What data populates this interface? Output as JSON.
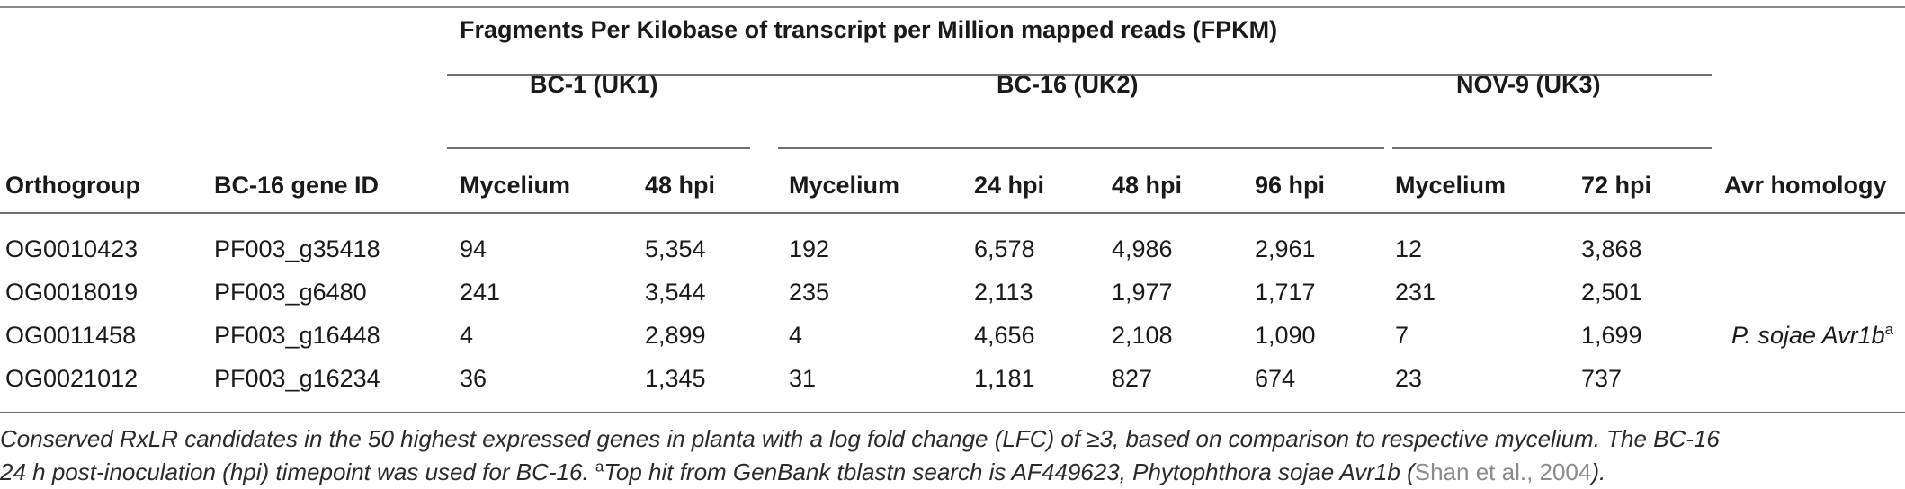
{
  "table": {
    "fpkm_header": "Fragments Per Kilobase of transcript per Million mapped reads (FPKM)",
    "groups": [
      "BC-1 (UK1)",
      "BC-16 (UK2)",
      "NOV-9 (UK3)"
    ],
    "columns": [
      "Orthogroup",
      "BC-16 gene ID",
      "Mycelium",
      "48 hpi",
      "Mycelium",
      "24 hpi",
      "48 hpi",
      "96 hpi",
      "Mycelium",
      "72 hpi",
      "Avr homology"
    ],
    "rows": [
      [
        "OG0010423",
        "PF003_g35418",
        "94",
        "5,354",
        "192",
        "6,578",
        "4,986",
        "2,961",
        "12",
        "3,868",
        ""
      ],
      [
        "OG0018019",
        "PF003_g6480",
        "241",
        "3,544",
        "235",
        "2,113",
        "1,977",
        "1,717",
        "231",
        "2,501",
        ""
      ],
      [
        "OG0011458",
        "PF003_g16448",
        "4",
        "2,899",
        "4",
        "4,656",
        "2,108",
        "1,090",
        "7",
        "1,699",
        "P. sojae Avr1b"
      ],
      [
        "OG0021012",
        "PF003_g16234",
        "36",
        "1,345",
        "31",
        "1,181",
        "827",
        "674",
        "23",
        "737",
        ""
      ]
    ],
    "avr_superscript": "a"
  },
  "caption": {
    "text1": "Conserved RxLR candidates in the 50 highest expressed genes in planta with a log fold change (LFC) of ≥3, based on comparison to respective mycelium. The BC-16",
    "text2": "24 h post-inoculation (hpi) timepoint was used for BC-16. ",
    "sup": "a",
    "text3": "Top hit from GenBank tblastn search is AF449623, Phytophthora sojae Avr1b (",
    "ref": "Shan et al., 2004",
    "text4": ")."
  }
}
